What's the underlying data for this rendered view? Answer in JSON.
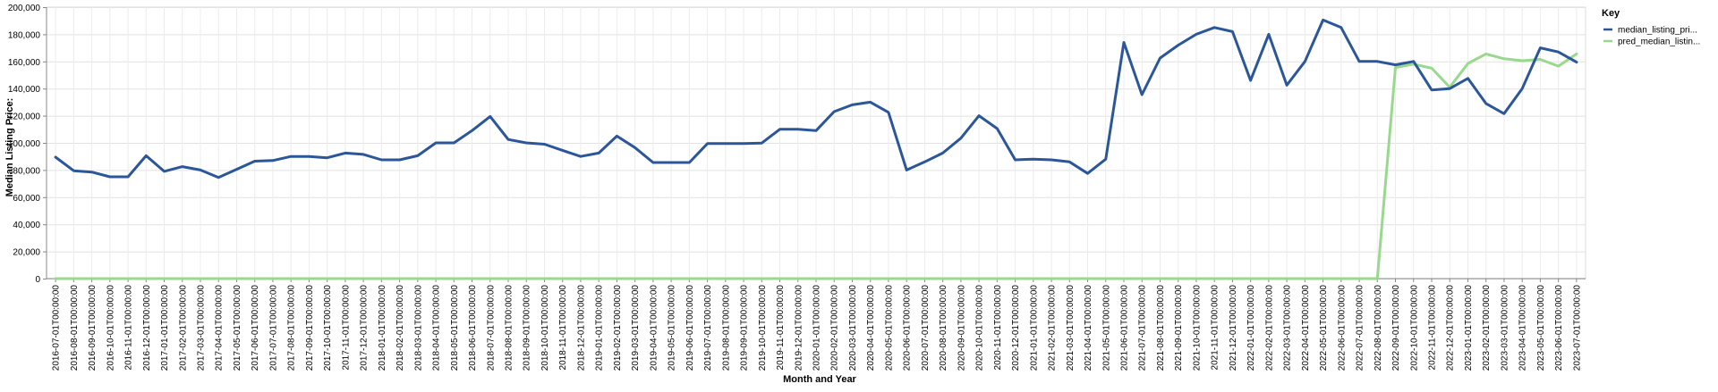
{
  "chart_data": {
    "type": "line",
    "xlabel": "Month and Year",
    "ylabel": "Median Listing Price:",
    "ylim": [
      0,
      200000
    ],
    "yticks": [
      0,
      20000,
      40000,
      60000,
      80000,
      100000,
      120000,
      140000,
      160000,
      180000,
      200000
    ],
    "ytick_labels": [
      "0",
      "20,000",
      "40,000",
      "60,000",
      "80,000",
      "100,000",
      "120,000",
      "140,000",
      "160,000",
      "180,000",
      "200,000"
    ],
    "grid": true,
    "legend_position": "top-right",
    "legend_title": "Key",
    "x": [
      "2016-07-01T00:00:00",
      "2016-08-01T00:00:00",
      "2016-09-01T00:00:00",
      "2016-10-01T00:00:00",
      "2016-11-01T00:00:00",
      "2016-12-01T00:00:00",
      "2017-01-01T00:00:00",
      "2017-02-01T00:00:00",
      "2017-03-01T00:00:00",
      "2017-04-01T00:00:00",
      "2017-05-01T00:00:00",
      "2017-06-01T00:00:00",
      "2017-07-01T00:00:00",
      "2017-08-01T00:00:00",
      "2017-09-01T00:00:00",
      "2017-10-01T00:00:00",
      "2017-11-01T00:00:00",
      "2017-12-01T00:00:00",
      "2018-01-01T00:00:00",
      "2018-02-01T00:00:00",
      "2018-03-01T00:00:00",
      "2018-04-01T00:00:00",
      "2018-05-01T00:00:00",
      "2018-06-01T00:00:00",
      "2018-07-01T00:00:00",
      "2018-08-01T00:00:00",
      "2018-09-01T00:00:00",
      "2018-10-01T00:00:00",
      "2018-11-01T00:00:00",
      "2018-12-01T00:00:00",
      "2019-01-01T00:00:00",
      "2019-02-01T00:00:00",
      "2019-03-01T00:00:00",
      "2019-04-01T00:00:00",
      "2019-05-01T00:00:00",
      "2019-06-01T00:00:00",
      "2019-07-01T00:00:00",
      "2019-08-01T00:00:00",
      "2019-09-01T00:00:00",
      "2019-10-01T00:00:00",
      "2019-11-01T00:00:00",
      "2019-12-01T00:00:00",
      "2020-01-01T00:00:00",
      "2020-02-01T00:00:00",
      "2020-03-01T00:00:00",
      "2020-04-01T00:00:00",
      "2020-05-01T00:00:00",
      "2020-06-01T00:00:00",
      "2020-07-01T00:00:00",
      "2020-08-01T00:00:00",
      "2020-09-01T00:00:00",
      "2020-10-01T00:00:00",
      "2020-11-01T00:00:00",
      "2020-12-01T00:00:00",
      "2021-01-01T00:00:00",
      "2021-02-01T00:00:00",
      "2021-03-01T00:00:00",
      "2021-04-01T00:00:00",
      "2021-05-01T00:00:00",
      "2021-06-01T00:00:00",
      "2021-07-01T00:00:00",
      "2021-08-01T00:00:00",
      "2021-09-01T00:00:00",
      "2021-10-01T00:00:00",
      "2021-11-01T00:00:00",
      "2021-12-01T00:00:00",
      "2022-01-01T00:00:00",
      "2022-02-01T00:00:00",
      "2022-03-01T00:00:00",
      "2022-04-01T00:00:00",
      "2022-05-01T00:00:00",
      "2022-06-01T00:00:00",
      "2022-07-01T00:00:00",
      "2022-08-01T00:00:00",
      "2022-09-01T00:00:00",
      "2022-10-01T00:00:00",
      "2022-11-01T00:00:00",
      "2022-12-01T00:00:00",
      "2023-01-01T00:00:00",
      "2023-02-01T00:00:00",
      "2023-03-01T00:00:00",
      "2023-04-01T00:00:00",
      "2023-05-01T00:00:00",
      "2023-06-01T00:00:00",
      "2023-07-01T00:00:00"
    ],
    "series": [
      {
        "name": "median_listing_pri...",
        "color": "#2b579a",
        "values": [
          89500,
          79500,
          78500,
          75000,
          75000,
          90500,
          79000,
          82500,
          80000,
          74500,
          80500,
          86500,
          87000,
          90000,
          90000,
          89000,
          92500,
          91500,
          87500,
          87500,
          90500,
          100000,
          100000,
          109000,
          119500,
          102500,
          100000,
          99000,
          94500,
          90000,
          92500,
          105000,
          96500,
          85500,
          85500,
          85500,
          99500,
          99500,
          99500,
          99900,
          110000,
          110000,
          109000,
          123000,
          128000,
          130000,
          122500,
          80000,
          86000,
          92500,
          103500,
          120000,
          110500,
          87500,
          88000,
          87500,
          86000,
          77500,
          88000,
          174000,
          135500,
          162500,
          172000,
          180000,
          185000,
          182000,
          146000,
          180000,
          142500,
          160000,
          190500,
          185000,
          160000,
          160000,
          157500,
          160000,
          139000,
          140000,
          147500,
          129000,
          121500,
          140000,
          170000,
          167000,
          159500
        ]
      },
      {
        "name": "pred_median_listin...",
        "color": "#98d98e",
        "values": [
          0,
          0,
          0,
          0,
          0,
          0,
          0,
          0,
          0,
          0,
          0,
          0,
          0,
          0,
          0,
          0,
          0,
          0,
          0,
          0,
          0,
          0,
          0,
          0,
          0,
          0,
          0,
          0,
          0,
          0,
          0,
          0,
          0,
          0,
          0,
          0,
          0,
          0,
          0,
          0,
          0,
          0,
          0,
          0,
          0,
          0,
          0,
          0,
          0,
          0,
          0,
          0,
          0,
          0,
          0,
          0,
          0,
          0,
          0,
          0,
          0,
          0,
          0,
          0,
          0,
          0,
          0,
          0,
          0,
          0,
          0,
          0,
          0,
          0,
          155500,
          158000,
          155000,
          141000,
          158500,
          165500,
          162000,
          160500,
          161500,
          156500,
          165500
        ]
      }
    ]
  }
}
